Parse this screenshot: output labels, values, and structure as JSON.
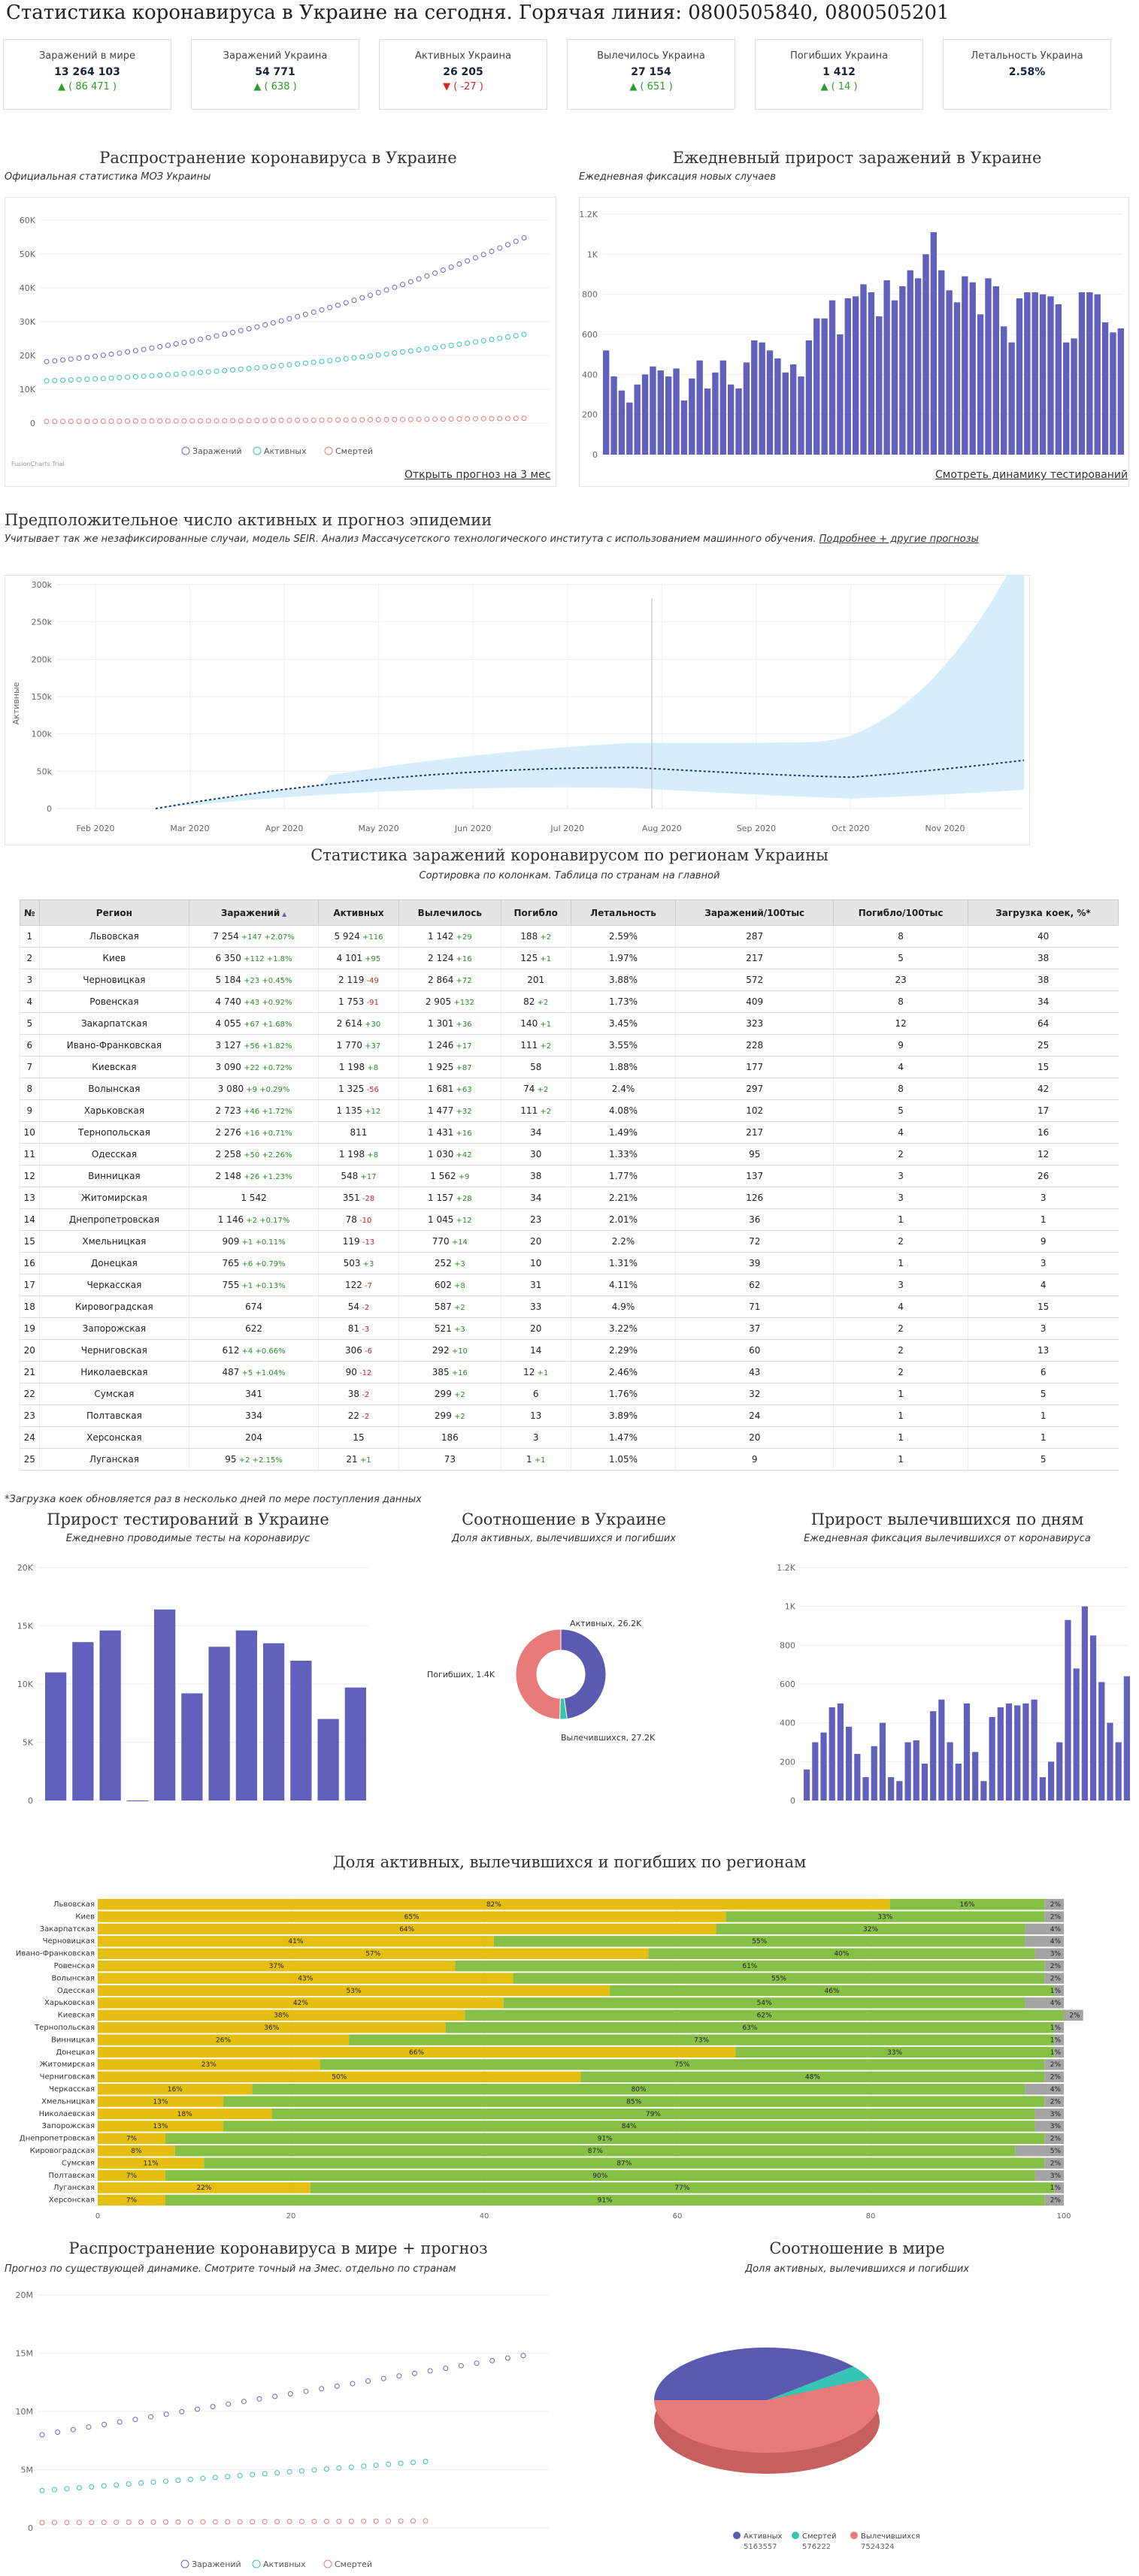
{
  "page": {
    "title": "Статистика коронавируса в Украине на сегодня. Горячая линия: 0800505840, 0800505201"
  },
  "stats": [
    {
      "label": "Заражений в мире",
      "value": "13 264 103",
      "delta": "▲ ( 86 471 )",
      "dir": "up"
    },
    {
      "label": "Заражений Украина",
      "value": "54 771",
      "delta": "▲ ( 638 )",
      "dir": "up"
    },
    {
      "label": "Активных Украина",
      "value": "26 205",
      "delta": "▼ ( -27 )",
      "dir": "down"
    },
    {
      "label": "Вылечилось Украина",
      "value": "27 154",
      "delta": "▲ ( 651 )",
      "dir": "up"
    },
    {
      "label": "Погибших Украина",
      "value": "1 412",
      "delta": "▲ ( 14 )",
      "dir": "up"
    },
    {
      "label": "Летальность Украина",
      "value": "2.58%",
      "delta": "",
      "dir": "none"
    }
  ],
  "spread": {
    "title": "Распространение коронавируса в Украине",
    "subtitle": "Официальная статистика МОЗ Украины",
    "link": "Открыть прогноз на 3 мес",
    "fc": "FusionCharts Trial",
    "legend": [
      "Заражений",
      "Активных",
      "Смертей"
    ],
    "colors": [
      "#6a6ac0",
      "#36c4b4",
      "#e87a7a"
    ]
  },
  "daily": {
    "title": "Ежедневный прирост заражений в Украине",
    "subtitle": "Ежедневная фиксация новых случаев",
    "link": "Смотреть динамику тестирований"
  },
  "forecast": {
    "title": "Предположительное число активных и прогноз эпидемии",
    "subtitle": "Учитывает так же незафиксированные случаи, модель SEIR. Анализ Массачусетского технологического института с использованием машинного обучения.",
    "subtitle_link": "Подробнее + другие прогнозы",
    "ylabel": "Активные"
  },
  "regions": {
    "title": "Статистика заражений коронавирусом по регионам Украины",
    "subtitle": "Сортировка по колонкам. Таблица по странам на главной",
    "headers": [
      "№",
      "Регион",
      "Заражений",
      "Активных",
      "Вылечилось",
      "Погибло",
      "Летальность",
      "Заражений/100тыс",
      "Погибло/100тыс",
      "Загрузка коек, %*"
    ],
    "sort_icon": "▲",
    "rows": [
      [
        "1",
        "Львовская",
        "7 254",
        "+147",
        "+2.07%",
        "5 924",
        "+116",
        "1 142",
        "+29",
        "188",
        "+2",
        "2.59%",
        "287",
        "8",
        "40"
      ],
      [
        "2",
        "Киев",
        "6 350",
        "+112",
        "+1.8%",
        "4 101",
        "+95",
        "2 124",
        "+16",
        "125",
        "+1",
        "1.97%",
        "217",
        "5",
        "38"
      ],
      [
        "3",
        "Черновицкая",
        "5 184",
        "+23",
        "+0.45%",
        "2 119",
        "-49",
        "2 864",
        "+72",
        "201",
        "",
        "3.88%",
        "572",
        "23",
        "38"
      ],
      [
        "4",
        "Ровенская",
        "4 740",
        "+43",
        "+0.92%",
        "1 753",
        "-91",
        "2 905",
        "+132",
        "82",
        "+2",
        "1.73%",
        "409",
        "8",
        "34"
      ],
      [
        "5",
        "Закарпатская",
        "4 055",
        "+67",
        "+1.68%",
        "2 614",
        "+30",
        "1 301",
        "+36",
        "140",
        "+1",
        "3.45%",
        "323",
        "12",
        "64"
      ],
      [
        "6",
        "Ивано-Франковская",
        "3 127",
        "+56",
        "+1.82%",
        "1 770",
        "+37",
        "1 246",
        "+17",
        "111",
        "+2",
        "3.55%",
        "228",
        "9",
        "25"
      ],
      [
        "7",
        "Киевская",
        "3 090",
        "+22",
        "+0.72%",
        "1 198",
        "+8",
        "1 925",
        "+87",
        "58",
        "",
        "1.88%",
        "177",
        "4",
        "15"
      ],
      [
        "8",
        "Волынская",
        "3 080",
        "+9",
        "+0.29%",
        "1 325",
        "-56",
        "1 681",
        "+63",
        "74",
        "+2",
        "2.4%",
        "297",
        "8",
        "42"
      ],
      [
        "9",
        "Харьковская",
        "2 723",
        "+46",
        "+1.72%",
        "1 135",
        "+12",
        "1 477",
        "+32",
        "111",
        "+2",
        "4.08%",
        "102",
        "5",
        "17"
      ],
      [
        "10",
        "Тернопольская",
        "2 276",
        "+16",
        "+0.71%",
        "811",
        "",
        "1 431",
        "+16",
        "34",
        "",
        "1.49%",
        "217",
        "4",
        "16"
      ],
      [
        "11",
        "Одесская",
        "2 258",
        "+50",
        "+2.26%",
        "1 198",
        "+8",
        "1 030",
        "+42",
        "30",
        "",
        "1.33%",
        "95",
        "2",
        "12"
      ],
      [
        "12",
        "Винницкая",
        "2 148",
        "+26",
        "+1.23%",
        "548",
        "+17",
        "1 562",
        "+9",
        "38",
        "",
        "1.77%",
        "137",
        "3",
        "26"
      ],
      [
        "13",
        "Житомирская",
        "1 542",
        "",
        "",
        "351",
        "-28",
        "1 157",
        "+28",
        "34",
        "",
        "2.21%",
        "126",
        "3",
        "3"
      ],
      [
        "14",
        "Днепропетровская",
        "1 146",
        "+2",
        "+0.17%",
        "78",
        "-10",
        "1 045",
        "+12",
        "23",
        "",
        "2.01%",
        "36",
        "1",
        "1"
      ],
      [
        "15",
        "Хмельницкая",
        "909",
        "+1",
        "+0.11%",
        "119",
        "-13",
        "770",
        "+14",
        "20",
        "",
        "2.2%",
        "72",
        "2",
        "9"
      ],
      [
        "16",
        "Донецкая",
        "765",
        "+6",
        "+0.79%",
        "503",
        "+3",
        "252",
        "+3",
        "10",
        "",
        "1.31%",
        "39",
        "1",
        "3"
      ],
      [
        "17",
        "Черкасская",
        "755",
        "+1",
        "+0.13%",
        "122",
        "-7",
        "602",
        "+8",
        "31",
        "",
        "4.11%",
        "62",
        "3",
        "4"
      ],
      [
        "18",
        "Кировоградская",
        "674",
        "",
        "",
        "54",
        "-2",
        "587",
        "+2",
        "33",
        "",
        "4.9%",
        "71",
        "4",
        "15"
      ],
      [
        "19",
        "Запорожская",
        "622",
        "",
        "",
        "81",
        "-3",
        "521",
        "+3",
        "20",
        "",
        "3.22%",
        "37",
        "2",
        "3"
      ],
      [
        "20",
        "Черниговская",
        "612",
        "+4",
        "+0.66%",
        "306",
        "-6",
        "292",
        "+10",
        "14",
        "",
        "2.29%",
        "60",
        "2",
        "13"
      ],
      [
        "21",
        "Николаевская",
        "487",
        "+5",
        "+1.04%",
        "90",
        "-12",
        "385",
        "+16",
        "12",
        "+1",
        "2.46%",
        "43",
        "2",
        "6"
      ],
      [
        "22",
        "Сумская",
        "341",
        "",
        "",
        "38",
        "-2",
        "299",
        "+2",
        "6",
        "",
        "1.76%",
        "32",
        "1",
        "5"
      ],
      [
        "23",
        "Полтавская",
        "334",
        "",
        "",
        "22",
        "-2",
        "299",
        "+2",
        "13",
        "",
        "3.89%",
        "24",
        "1",
        "1"
      ],
      [
        "24",
        "Херсонская",
        "204",
        "",
        "",
        "15",
        "",
        "186",
        "",
        "3",
        "",
        "1.47%",
        "20",
        "1",
        "1"
      ],
      [
        "25",
        "Луганская",
        "95",
        "+2",
        "+2.15%",
        "21",
        "+1",
        "73",
        "",
        "1",
        "+1",
        "1.05%",
        "9",
        "1",
        "5"
      ]
    ],
    "note": "*Загрузка коек обновляется раз в несколько дней по мере поступления данных"
  },
  "testing": {
    "title": "Прирост тестирований в Украине",
    "subtitle": "Ежедневно проводимые тесты на коронавирус"
  },
  "ratio_ua": {
    "title": "Соотношение в Украине",
    "subtitle": "Доля активных, вылечившихся и погибших",
    "labels": [
      "Активных, 26.2K",
      "Погибших, 1.4K",
      "Вылечившихся, 27.2K"
    ]
  },
  "recovered": {
    "title": "Прирост вылечившихся по дням",
    "subtitle": "Ежедневная фиксация вылечившихся от коронавируса"
  },
  "shares": {
    "title": "Доля активных, вылечившихся и погибших по регионам",
    "rows": [
      [
        "Львовская",
        82,
        16,
        2
      ],
      [
        "Киев",
        65,
        33,
        2
      ],
      [
        "Закарпатская",
        64,
        32,
        4
      ],
      [
        "Черновицкая",
        41,
        55,
        4
      ],
      [
        "Ивано-Франковская",
        57,
        40,
        3
      ],
      [
        "Ровенская",
        37,
        61,
        2
      ],
      [
        "Волынская",
        43,
        55,
        2
      ],
      [
        "Одесская",
        53,
        46,
        1
      ],
      [
        "Харьковская",
        42,
        54,
        4
      ],
      [
        "Киевская",
        38,
        62,
        2
      ],
      [
        "Тернопольская",
        36,
        63,
        1
      ],
      [
        "Винницкая",
        26,
        73,
        1
      ],
      [
        "Донецкая",
        66,
        33,
        1
      ],
      [
        "Житомирская",
        23,
        75,
        2
      ],
      [
        "Черниговская",
        50,
        48,
        2
      ],
      [
        "Черкасская",
        16,
        80,
        4
      ],
      [
        "Хмельницкая",
        13,
        85,
        2
      ],
      [
        "Николаевская",
        18,
        79,
        3
      ],
      [
        "Запорожская",
        13,
        84,
        3
      ],
      [
        "Днепропетровская",
        7,
        91,
        2
      ],
      [
        "Кировоградская",
        8,
        87,
        5
      ],
      [
        "Сумская",
        11,
        87,
        2
      ],
      [
        "Полтавская",
        7,
        90,
        3
      ],
      [
        "Луганская",
        22,
        77,
        1
      ],
      [
        "Херсонская",
        7,
        91,
        2
      ]
    ]
  },
  "world": {
    "title": "Распространение коронавируса в мире + прогноз",
    "subtitle": "Прогноз по существующей динамике. Смотрите точный на 3мес. отдельно по странам",
    "legend": [
      "Заражений",
      "Активных",
      "Смертей"
    ]
  },
  "ratio_world": {
    "title": "Соотношение в мире",
    "subtitle": "Доля активных, вылечившихся и погибших",
    "legend": [
      {
        "name": "Активных",
        "value": "5163557",
        "color": "#5a5ab0"
      },
      {
        "name": "Смертей",
        "value": "576222",
        "color": "#36c4b4"
      },
      {
        "name": "Вылечившихся",
        "value": "7524324",
        "color": "#e87a7a"
      }
    ]
  },
  "chart_data": [
    {
      "type": "line",
      "title": "Распространение коронавируса в Украине",
      "ylim": [
        0,
        60000
      ],
      "yticks": [
        "0",
        "10K",
        "20K",
        "30K",
        "40K",
        "50K",
        "60K"
      ],
      "series": [
        {
          "name": "Заражений",
          "start": 18200,
          "end": 54771
        },
        {
          "name": "Активных",
          "start": 12500,
          "end": 26205
        },
        {
          "name": "Смертей",
          "start": 500,
          "end": 1412
        }
      ]
    },
    {
      "type": "bar",
      "title": "Ежедневный прирост заражений в Украине",
      "ylim": [
        0,
        1200
      ],
      "yticks": [
        "0",
        "200",
        "400",
        "600",
        "800",
        "1K",
        "1.2K"
      ],
      "values": [
        520,
        390,
        320,
        260,
        350,
        400,
        440,
        420,
        390,
        430,
        270,
        380,
        470,
        330,
        410,
        470,
        350,
        330,
        460,
        570,
        560,
        520,
        480,
        410,
        450,
        390,
        570,
        680,
        680,
        770,
        600,
        780,
        790,
        850,
        810,
        690,
        870,
        770,
        840,
        920,
        880,
        1000,
        1110,
        920,
        820,
        760,
        890,
        860,
        700,
        880,
        840,
        640,
        560,
        780,
        810,
        810,
        800,
        790,
        750,
        560,
        580,
        810,
        810,
        800,
        660,
        610,
        630
      ]
    },
    {
      "type": "area",
      "title": "Предположительное число активных и прогноз эпидемии",
      "ylabel": "Активные",
      "ylim": [
        0,
        300000
      ],
      "yticks": [
        "0",
        "50k",
        "100k",
        "150k",
        "200k",
        "250k",
        "300k"
      ],
      "xticks": [
        "Feb 2020",
        "Mar 2020",
        "Apr 2020",
        "May 2020",
        "Jun 2020",
        "Jul 2020",
        "Aug 2020",
        "Sep 2020",
        "Oct 2020",
        "Nov 2020"
      ]
    },
    {
      "type": "bar",
      "title": "Прирост тестирований в Украине",
      "ylim": [
        0,
        20000
      ],
      "yticks": [
        "0",
        "5K",
        "10K",
        "15K",
        "20K"
      ],
      "values": [
        11000,
        13600,
        14600,
        0,
        16400,
        9200,
        13200,
        14600,
        13500,
        12000,
        7000,
        9700
      ]
    },
    {
      "type": "pie",
      "title": "Соотношение в Украине",
      "values": [
        {
          "name": "Активных",
          "value": 26.2
        },
        {
          "name": "Погибших",
          "value": 1.4
        },
        {
          "name": "Вылечившихся",
          "value": 27.2
        }
      ]
    },
    {
      "type": "bar",
      "title": "Прирост вылечившихся по дням",
      "ylim": [
        0,
        1200
      ],
      "yticks": [
        "0",
        "200",
        "400",
        "600",
        "800",
        "1K",
        "1.2K"
      ],
      "values": [
        160,
        300,
        350,
        480,
        500,
        380,
        240,
        120,
        280,
        400,
        120,
        100,
        300,
        310,
        190,
        460,
        520,
        300,
        190,
        500,
        250,
        100,
        430,
        480,
        500,
        490,
        500,
        520,
        120,
        200,
        300,
        930,
        680,
        1000,
        850,
        610,
        400,
        300,
        640
      ]
    },
    {
      "type": "bar",
      "title": "Доля активных, вылечившихся и погибших по регионам",
      "xlim": [
        0,
        100
      ],
      "xticks": [
        "0",
        "20",
        "40",
        "60",
        "80",
        "100"
      ]
    },
    {
      "type": "line",
      "title": "Распространение коронавируса в мире + прогноз",
      "ylim": [
        0,
        20000000
      ],
      "yticks": [
        "0",
        "5M",
        "10M",
        "15M",
        "20M"
      ],
      "series": [
        {
          "name": "Заражений",
          "start": 8000000,
          "end": 14800000
        },
        {
          "name": "Активных",
          "start": 3200000,
          "end": 5700000
        },
        {
          "name": "Смертей",
          "start": 450000,
          "end": 600000
        }
      ]
    },
    {
      "type": "pie",
      "title": "Соотношение в мире",
      "values": [
        {
          "name": "Активных",
          "value": 5163557
        },
        {
          "name": "Смертей",
          "value": 576222
        },
        {
          "name": "Вылечившихся",
          "value": 7524324
        }
      ]
    }
  ]
}
